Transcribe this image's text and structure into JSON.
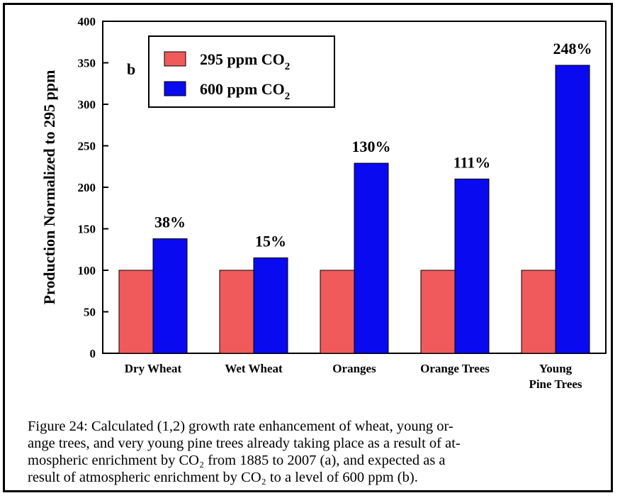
{
  "chart_data": {
    "type": "bar",
    "panel_label": "b",
    "ylabel": "Production Normalized to 295 ppm",
    "ylim": [
      0,
      400
    ],
    "yticks": [
      "0",
      "50",
      "100",
      "150",
      "200",
      "250",
      "300",
      "350",
      "400"
    ],
    "categories": [
      [
        "Dry Wheat"
      ],
      [
        "Wet Wheat"
      ],
      [
        "Oranges"
      ],
      [
        "Orange Trees"
      ],
      [
        "Young",
        "Pine Trees"
      ]
    ],
    "series": [
      {
        "name": "295 ppm CO2",
        "legend_main": "295 ppm CO",
        "legend_sub": "2",
        "color": "#f05a5a",
        "values": [
          100,
          100,
          100,
          100,
          100
        ]
      },
      {
        "name": "600 ppm CO2",
        "legend_main": "600 ppm CO",
        "legend_sub": "2",
        "color": "#0a0af0",
        "values": [
          138,
          115,
          229,
          210,
          347
        ]
      }
    ],
    "data_labels": [
      "38%",
      "15%",
      "130%",
      "111%",
      "248%"
    ],
    "grid": false,
    "legend_position": "top-left"
  },
  "caption": {
    "lines": [
      "Figure 24: Calculated (1,2) growth rate enhancement of wheat, young or-",
      "ange trees, and very young pine trees already taking place as a result of at-",
      "mospheric enrichment by CO₂ from 1885 to 2007 (a), and expected as a",
      "result of atmospheric enrichment by CO₂ to a level of 600 ppm (b)."
    ]
  }
}
